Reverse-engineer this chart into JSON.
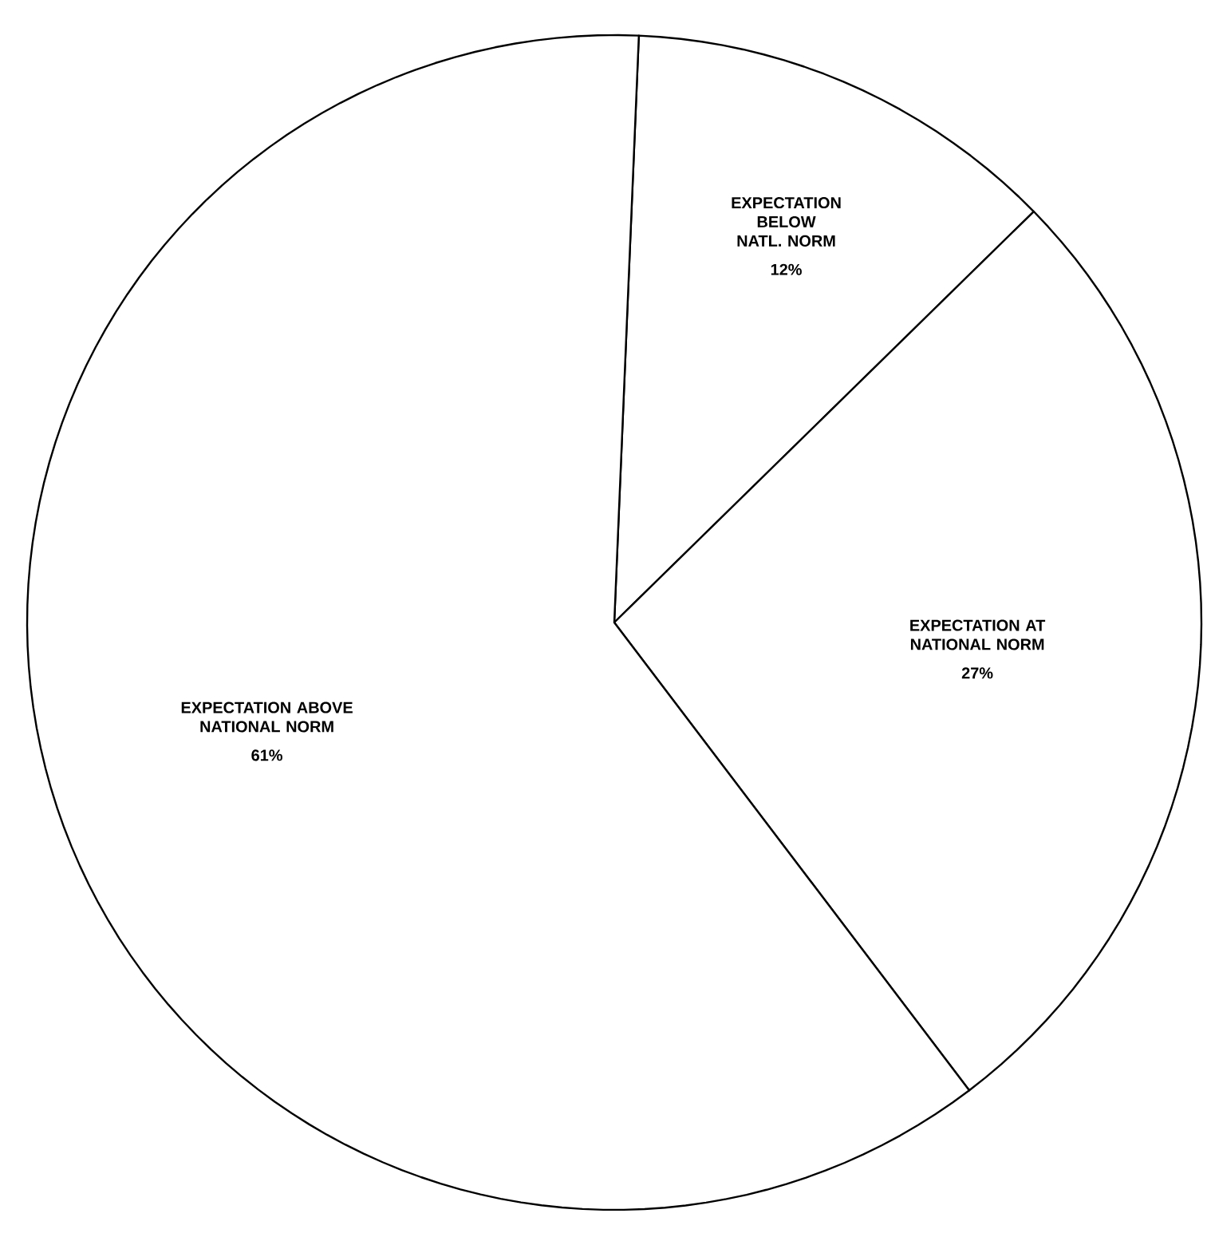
{
  "chart_data": {
    "type": "pie",
    "categories": [
      "EXPECTATION BELOW NATL. NORM",
      "EXPECTATION AT NATIONAL NORM",
      "EXPECTATION ABOVE NATIONAL NORM"
    ],
    "values": [
      12,
      27,
      61
    ],
    "value_labels": [
      "12%",
      "27%",
      "61%"
    ],
    "colors": [
      "#ffffff",
      "#ffffff",
      "#ffffff"
    ]
  }
}
